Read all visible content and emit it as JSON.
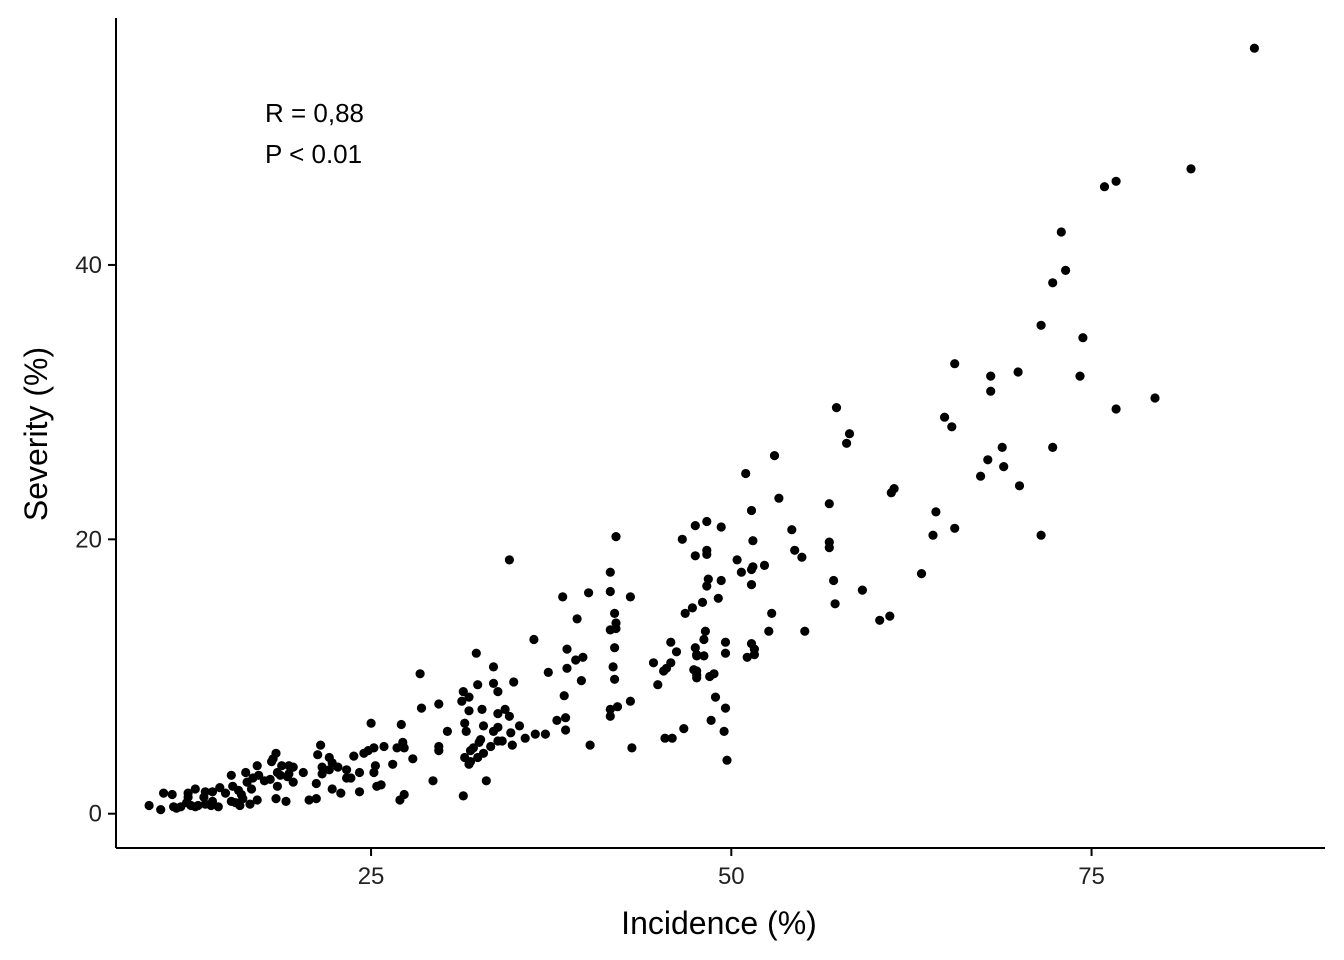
{
  "chart_data": {
    "type": "scatter",
    "xlabel": "Incidence (%)",
    "ylabel": "Severity (%)",
    "xlim": [
      7.3,
      91.2
    ],
    "ylim": [
      -2.5,
      58
    ],
    "x_ticks": [
      25,
      50,
      75
    ],
    "y_ticks": [
      0,
      20,
      40
    ],
    "x_tick_labels": [
      "25",
      "50",
      "75"
    ],
    "y_tick_labels": [
      "0",
      "20",
      "40"
    ],
    "grid": false,
    "legend": "none",
    "point_color": "#000000",
    "annotations": [
      "R = 0,88",
      "P < 0.01"
    ],
    "points": [
      [
        86.3,
        55.8
      ],
      [
        81.9,
        47.0
      ],
      [
        76.7,
        46.1
      ],
      [
        75.9,
        45.7
      ],
      [
        72.9,
        42.4
      ],
      [
        73.2,
        39.6
      ],
      [
        72.3,
        38.7
      ],
      [
        71.5,
        35.6
      ],
      [
        74.4,
        34.7
      ],
      [
        65.5,
        32.8
      ],
      [
        69.9,
        32.2
      ],
      [
        68.0,
        31.9
      ],
      [
        74.2,
        31.9
      ],
      [
        68.0,
        30.8
      ],
      [
        79.4,
        30.3
      ],
      [
        76.7,
        29.5
      ],
      [
        57.3,
        29.6
      ],
      [
        64.8,
        28.9
      ],
      [
        65.3,
        28.2
      ],
      [
        58.2,
        27.7
      ],
      [
        58.0,
        27.0
      ],
      [
        68.8,
        26.7
      ],
      [
        72.3,
        26.7
      ],
      [
        53.0,
        26.1
      ],
      [
        67.8,
        25.8
      ],
      [
        68.9,
        25.3
      ],
      [
        51.0,
        24.8
      ],
      [
        67.3,
        24.6
      ],
      [
        70.0,
        23.9
      ],
      [
        61.3,
        23.7
      ],
      [
        61.1,
        23.4
      ],
      [
        53.3,
        23.0
      ],
      [
        56.8,
        22.6
      ],
      [
        51.4,
        22.1
      ],
      [
        64.2,
        22.0
      ],
      [
        48.3,
        21.3
      ],
      [
        47.5,
        21.0
      ],
      [
        49.3,
        20.9
      ],
      [
        65.5,
        20.8
      ],
      [
        54.2,
        20.7
      ],
      [
        71.5,
        20.3
      ],
      [
        64.0,
        20.3
      ],
      [
        42.0,
        20.2
      ],
      [
        46.6,
        20.0
      ],
      [
        51.5,
        19.9
      ],
      [
        56.8,
        19.8
      ],
      [
        56.8,
        19.4
      ],
      [
        54.4,
        19.2
      ],
      [
        48.3,
        19.2
      ],
      [
        48.3,
        18.9
      ],
      [
        47.5,
        18.8
      ],
      [
        54.9,
        18.7
      ],
      [
        34.6,
        18.5
      ],
      [
        50.4,
        18.5
      ],
      [
        52.3,
        18.1
      ],
      [
        51.5,
        18.0
      ],
      [
        51.4,
        17.8
      ],
      [
        50.7,
        17.6
      ],
      [
        41.6,
        17.6
      ],
      [
        63.2,
        17.5
      ],
      [
        48.4,
        17.1
      ],
      [
        49.3,
        17.0
      ],
      [
        57.1,
        17.0
      ],
      [
        48.3,
        16.6
      ],
      [
        51.4,
        16.7
      ],
      [
        59.1,
        16.3
      ],
      [
        41.6,
        16.2
      ],
      [
        40.1,
        16.1
      ],
      [
        43.0,
        15.8
      ],
      [
        38.3,
        15.8
      ],
      [
        49.1,
        15.7
      ],
      [
        48.0,
        15.4
      ],
      [
        57.2,
        15.3
      ],
      [
        47.3,
        15.0
      ],
      [
        41.9,
        14.6
      ],
      [
        52.8,
        14.6
      ],
      [
        46.8,
        14.6
      ],
      [
        61.0,
        14.4
      ],
      [
        60.3,
        14.1
      ],
      [
        39.3,
        14.2
      ],
      [
        42.0,
        13.9
      ],
      [
        42.0,
        13.5
      ],
      [
        55.1,
        13.3
      ],
      [
        52.6,
        13.3
      ],
      [
        41.6,
        13.4
      ],
      [
        48.2,
        13.3
      ],
      [
        36.3,
        12.7
      ],
      [
        48.1,
        12.7
      ],
      [
        45.8,
        12.5
      ],
      [
        49.6,
        12.5
      ],
      [
        51.4,
        12.4
      ],
      [
        47.5,
        12.1
      ],
      [
        51.6,
        12.0
      ],
      [
        38.6,
        12.0
      ],
      [
        41.9,
        12.1
      ],
      [
        46.2,
        11.8
      ],
      [
        32.3,
        11.7
      ],
      [
        49.6,
        11.7
      ],
      [
        47.6,
        11.6
      ],
      [
        51.6,
        11.6
      ],
      [
        48.1,
        11.5
      ],
      [
        47.6,
        11.5
      ],
      [
        51.1,
        11.4
      ],
      [
        39.7,
        11.4
      ],
      [
        39.2,
        11.2
      ],
      [
        44.6,
        11.0
      ],
      [
        45.8,
        11.0
      ],
      [
        45.5,
        10.6
      ],
      [
        41.8,
        10.7
      ],
      [
        33.5,
        10.7
      ],
      [
        38.6,
        10.6
      ],
      [
        47.4,
        10.5
      ],
      [
        47.6,
        10.4
      ],
      [
        45.3,
        10.4
      ],
      [
        37.3,
        10.3
      ],
      [
        28.4,
        10.2
      ],
      [
        48.8,
        10.2
      ],
      [
        47.6,
        10.1
      ],
      [
        48.5,
        10.0
      ],
      [
        41.9,
        9.8
      ],
      [
        39.6,
        9.7
      ],
      [
        47.6,
        9.9
      ],
      [
        32.4,
        9.4
      ],
      [
        33.5,
        9.5
      ],
      [
        34.9,
        9.6
      ],
      [
        44.9,
        9.4
      ],
      [
        33.8,
        8.9
      ],
      [
        31.4,
        8.9
      ],
      [
        38.4,
        8.6
      ],
      [
        31.8,
        8.5
      ],
      [
        48.9,
        8.5
      ],
      [
        31.3,
        8.2
      ],
      [
        43.0,
        8.2
      ],
      [
        28.5,
        7.7
      ],
      [
        29.7,
        8.0
      ],
      [
        32.7,
        7.6
      ],
      [
        41.6,
        7.6
      ],
      [
        42.1,
        7.8
      ],
      [
        34.3,
        7.6
      ],
      [
        31.8,
        7.5
      ],
      [
        49.6,
        7.7
      ],
      [
        33.8,
        7.3
      ],
      [
        38.5,
        7.0
      ],
      [
        34.6,
        7.1
      ],
      [
        41.6,
        7.1
      ],
      [
        48.6,
        6.8
      ],
      [
        37.9,
        6.8
      ],
      [
        31.5,
        6.6
      ],
      [
        27.1,
        6.5
      ],
      [
        32.8,
        6.4
      ],
      [
        33.8,
        6.3
      ],
      [
        35.3,
        6.4
      ],
      [
        25.0,
        6.6
      ],
      [
        46.7,
        6.2
      ],
      [
        38.5,
        6.1
      ],
      [
        30.3,
        6.0
      ],
      [
        31.6,
        6.0
      ],
      [
        33.5,
        6.0
      ],
      [
        49.5,
        6.0
      ],
      [
        34.7,
        5.9
      ],
      [
        36.4,
        5.8
      ],
      [
        37.1,
        5.8
      ],
      [
        35.7,
        5.5
      ],
      [
        45.9,
        5.5
      ],
      [
        45.4,
        5.5
      ],
      [
        32.6,
        5.4
      ],
      [
        34.1,
        5.3
      ],
      [
        32.5,
        5.2
      ],
      [
        33.8,
        5.3
      ],
      [
        27.2,
        5.2
      ],
      [
        40.2,
        5.0
      ],
      [
        29.7,
        4.9
      ],
      [
        34.8,
        5.0
      ],
      [
        33.3,
        4.9
      ],
      [
        21.5,
        5.0
      ],
      [
        25.9,
        4.9
      ],
      [
        25.2,
        4.8
      ],
      [
        26.8,
        4.8
      ],
      [
        32.1,
        4.8
      ],
      [
        43.1,
        4.8
      ],
      [
        24.8,
        4.6
      ],
      [
        27.3,
        4.8
      ],
      [
        29.7,
        4.6
      ],
      [
        31.9,
        4.6
      ],
      [
        18.4,
        4.4
      ],
      [
        24.5,
        4.4
      ],
      [
        21.3,
        4.3
      ],
      [
        32.8,
        4.4
      ],
      [
        23.8,
        4.2
      ],
      [
        31.5,
        4.1
      ],
      [
        22.1,
        4.1
      ],
      [
        27.9,
        4.0
      ],
      [
        32.4,
        4.1
      ],
      [
        31.8,
        3.6
      ],
      [
        18.2,
        4.0
      ],
      [
        49.7,
        3.9
      ],
      [
        31.9,
        3.8
      ],
      [
        18.1,
        3.8
      ],
      [
        22.3,
        3.7
      ],
      [
        26.5,
        3.6
      ],
      [
        25.3,
        3.5
      ],
      [
        19.3,
        3.5
      ],
      [
        18.8,
        3.5
      ],
      [
        17.1,
        3.5
      ],
      [
        19.6,
        3.4
      ],
      [
        22.7,
        3.4
      ],
      [
        21.6,
        3.4
      ],
      [
        22.1,
        3.2
      ],
      [
        20.3,
        3.0
      ],
      [
        23.3,
        3.2
      ],
      [
        24.2,
        3.0
      ],
      [
        16.3,
        3.0
      ],
      [
        18.5,
        3.0
      ],
      [
        25.2,
        3.0
      ],
      [
        19.3,
        2.9
      ],
      [
        18.7,
        2.8
      ],
      [
        15.3,
        2.8
      ],
      [
        17.2,
        2.8
      ],
      [
        21.6,
        2.9
      ],
      [
        19.2,
        2.7
      ],
      [
        23.3,
        2.6
      ],
      [
        23.6,
        2.6
      ],
      [
        18.0,
        2.5
      ],
      [
        16.8,
        2.6
      ],
      [
        17.6,
        2.4
      ],
      [
        19.6,
        2.3
      ],
      [
        29.3,
        2.4
      ],
      [
        33.0,
        2.4
      ],
      [
        16.4,
        2.3
      ],
      [
        21.2,
        2.2
      ],
      [
        25.7,
        2.1
      ],
      [
        18.5,
        2.0
      ],
      [
        25.4,
        2.0
      ],
      [
        15.4,
        2.0
      ],
      [
        14.5,
        1.9
      ],
      [
        16.7,
        1.8
      ],
      [
        15.8,
        1.7
      ],
      [
        22.3,
        1.8
      ],
      [
        12.8,
        1.8
      ],
      [
        24.2,
        1.6
      ],
      [
        13.5,
        1.6
      ],
      [
        14.0,
        1.6
      ],
      [
        12.3,
        1.5
      ],
      [
        10.6,
        1.5
      ],
      [
        14.9,
        1.5
      ],
      [
        16.0,
        1.4
      ],
      [
        11.2,
        1.4
      ],
      [
        22.9,
        1.5
      ],
      [
        27.3,
        1.4
      ],
      [
        31.4,
        1.3
      ],
      [
        13.4,
        1.2
      ],
      [
        12.3,
        1.2
      ],
      [
        18.4,
        1.1
      ],
      [
        16.1,
        1.1
      ],
      [
        17.1,
        1.0
      ],
      [
        21.2,
        1.1
      ],
      [
        27.0,
        1.0
      ],
      [
        19.1,
        0.9
      ],
      [
        20.7,
        1.0
      ],
      [
        15.3,
        0.9
      ],
      [
        14.0,
        0.9
      ],
      [
        15.6,
        0.8
      ],
      [
        13.5,
        0.7
      ],
      [
        12.2,
        0.8
      ],
      [
        13.0,
        0.6
      ],
      [
        11.3,
        0.5
      ],
      [
        9.6,
        0.6
      ],
      [
        12.5,
        0.6
      ],
      [
        11.5,
        0.4
      ],
      [
        14.4,
        0.5
      ],
      [
        12.8,
        0.5
      ],
      [
        13.9,
        0.6
      ],
      [
        15.9,
        0.6
      ],
      [
        11.8,
        0.5
      ],
      [
        16.6,
        0.7
      ],
      [
        10.4,
        0.3
      ]
    ]
  }
}
